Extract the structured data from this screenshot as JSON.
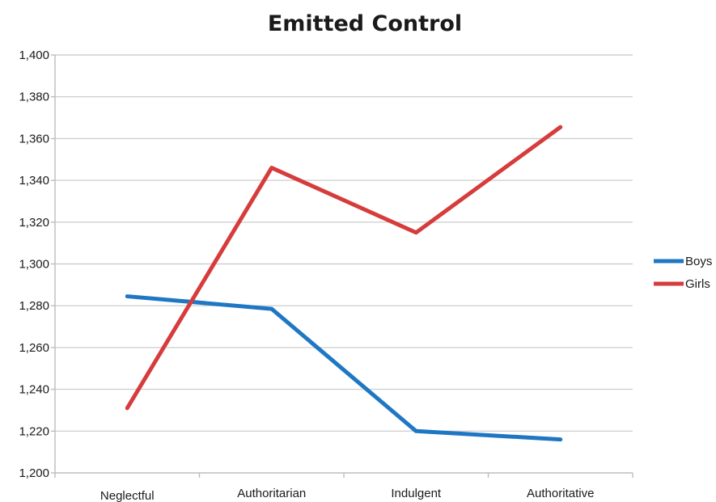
{
  "chart_data": {
    "type": "line",
    "title": "Emitted Control",
    "xlabel": "",
    "ylabel": "",
    "categories": [
      "Neglectful",
      "Authoritarian",
      "Indulgent",
      "Authoritative"
    ],
    "ylim": [
      1200,
      1400
    ],
    "yticks": [
      1200,
      1220,
      1240,
      1260,
      1280,
      1300,
      1320,
      1340,
      1360,
      1380,
      1400
    ],
    "ytick_labels": [
      "1,200",
      "1,220",
      "1,240",
      "1,260",
      "1,280",
      "1,300",
      "1,320",
      "1,340",
      "1,360",
      "1,380",
      "1,400"
    ],
    "grid": true,
    "legend_position": "right",
    "series": [
      {
        "name": "Boys",
        "color": "#1f77c4",
        "values": [
          1284.5,
          1278.5,
          1220,
          1216
        ]
      },
      {
        "name": "Girls",
        "color": "#d63c3c",
        "values": [
          1231,
          1346,
          1315,
          1365.5
        ]
      }
    ]
  }
}
